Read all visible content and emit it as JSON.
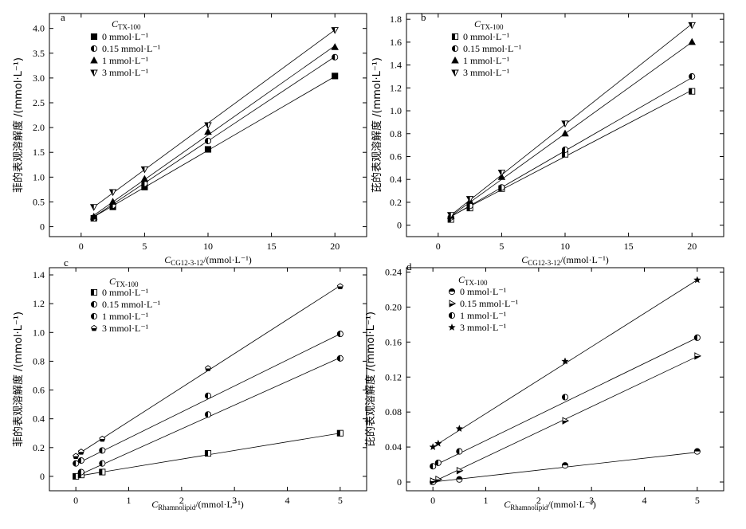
{
  "chart_data": [
    {
      "id": "a",
      "type": "scatter",
      "panel_label": "a",
      "legend_title": "C",
      "legend_title_sub": "TX-100",
      "ylabel": "菲的表观溶解度 /(mmol·L⁻¹)",
      "xlabel_main": "C",
      "xlabel_sub": "CG12-3-12",
      "xlabel_rest": "/(mmol·L⁻¹)",
      "xlim": [
        -2.5,
        22.5
      ],
      "ylim": [
        -0.2,
        4.3
      ],
      "xticks": [
        0,
        5,
        10,
        15,
        20
      ],
      "xtick_labels": [
        "0",
        "5",
        "10",
        "15",
        "20"
      ],
      "yticks": [
        0,
        0.5,
        1.0,
        1.5,
        2.0,
        2.5,
        3.0,
        3.5,
        4.0
      ],
      "ytick_labels": [
        "0",
        "0.5",
        "1.0",
        "1.5",
        "2.0",
        "2.5",
        "3.0",
        "3.5",
        "4.0"
      ],
      "series": [
        {
          "name": "0 mmol·L⁻¹",
          "marker": "square-filled",
          "x": [
            1,
            2.5,
            5,
            10,
            20
          ],
          "y": [
            0.17,
            0.4,
            0.8,
            1.56,
            3.04
          ],
          "fit": [
            0.05,
            0.149
          ]
        },
        {
          "name": "0.15 mmol·L⁻¹",
          "marker": "circle-half",
          "x": [
            1,
            2.5,
            5,
            10,
            20
          ],
          "y": [
            0.17,
            0.43,
            0.87,
            1.73,
            3.42
          ],
          "fit": [
            0.03,
            0.17
          ]
        },
        {
          "name": "1 mmol·L⁻¹",
          "marker": "triangle-up",
          "x": [
            1,
            2.5,
            5,
            10,
            20
          ],
          "y": [
            0.2,
            0.5,
            0.96,
            1.91,
            3.62
          ],
          "fit": [
            0.05,
            0.18
          ]
        },
        {
          "name": "3 mmol·L⁻¹",
          "marker": "triangle-down",
          "x": [
            1,
            2.5,
            5,
            10,
            20
          ],
          "y": [
            0.4,
            0.7,
            1.16,
            2.05,
            3.97
          ],
          "fit": [
            0.21,
            0.188
          ]
        }
      ]
    },
    {
      "id": "b",
      "type": "scatter",
      "panel_label": "b",
      "legend_title": "C",
      "legend_title_sub": "TX-100",
      "ylabel": "芘的表观溶解度 /(mmol·L⁻¹)",
      "xlabel_main": "C",
      "xlabel_sub": "CG12-3-12",
      "xlabel_rest": "/(mmol·L⁻¹)",
      "xlim": [
        -2.5,
        22.5
      ],
      "ylim": [
        -0.1,
        1.85
      ],
      "xticks": [
        0,
        5,
        10,
        15,
        20
      ],
      "xtick_labels": [
        "0",
        "5",
        "10",
        "15",
        "20"
      ],
      "yticks": [
        0,
        0.2,
        0.4,
        0.6,
        0.8,
        1.0,
        1.2,
        1.4,
        1.6,
        1.8
      ],
      "ytick_labels": [
        "0",
        "0.2",
        "0.4",
        "0.6",
        "0.8",
        "1.0",
        "1.2",
        "1.4",
        "1.6",
        "1.8"
      ],
      "series": [
        {
          "name": "0 mmol·L⁻¹",
          "marker": "square-half",
          "x": [
            1,
            2.5,
            5,
            10,
            20
          ],
          "y": [
            0.05,
            0.15,
            0.32,
            0.62,
            1.17
          ],
          "fit": [
            0.02,
            0.058
          ]
        },
        {
          "name": "0.15 mmol·L⁻¹",
          "marker": "circle-half",
          "x": [
            1,
            2.5,
            5,
            10,
            20
          ],
          "y": [
            0.07,
            0.17,
            0.33,
            0.66,
            1.3
          ],
          "fit": [
            0.01,
            0.064
          ]
        },
        {
          "name": "1 mmol·L⁻¹",
          "marker": "triangle-up",
          "x": [
            1,
            2.5,
            5,
            10,
            20
          ],
          "y": [
            0.08,
            0.21,
            0.42,
            0.8,
            1.6
          ],
          "fit": [
            0.0,
            0.08
          ]
        },
        {
          "name": "3 mmol·L⁻¹",
          "marker": "triangle-down",
          "x": [
            1,
            2.5,
            5,
            10,
            20
          ],
          "y": [
            0.09,
            0.23,
            0.46,
            0.89,
            1.75
          ],
          "fit": [
            0.0,
            0.088
          ]
        }
      ]
    },
    {
      "id": "c",
      "type": "scatter",
      "panel_label": "c",
      "legend_title": "C",
      "legend_title_sub": "TX-100",
      "ylabel": "菲的表观溶解度 /(mmol·L⁻¹)",
      "xlabel_main": "C",
      "xlabel_sub": "Rhamnolipid",
      "xlabel_rest": "/(mmol·L⁻¹)",
      "xlim": [
        -0.5,
        5.5
      ],
      "ylim": [
        -0.1,
        1.45
      ],
      "xticks": [
        0,
        1,
        2,
        3,
        4,
        5
      ],
      "xtick_labels": [
        "0",
        "1",
        "2",
        "3",
        "4",
        "5"
      ],
      "yticks": [
        0,
        0.2,
        0.4,
        0.6,
        0.8,
        1.0,
        1.2,
        1.4
      ],
      "ytick_labels": [
        "0",
        "0.2",
        "0.4",
        "0.6",
        "0.8",
        "1.0",
        "1.2",
        "1.4"
      ],
      "series": [
        {
          "name": "0 mmol·L⁻¹",
          "marker": "square-half",
          "x": [
            0,
            0.1,
            0.5,
            2.5,
            5
          ],
          "y": [
            0.0,
            0.01,
            0.03,
            0.16,
            0.3
          ],
          "fit": [
            0.0,
            0.06
          ]
        },
        {
          "name": "0.15 mmol·L⁻¹",
          "marker": "circle-half",
          "x": [
            0.1,
            0.5,
            2.5,
            5
          ],
          "y": [
            0.03,
            0.09,
            0.43,
            0.82
          ],
          "fit": [
            0.0,
            0.165
          ]
        },
        {
          "name": "1 mmol·L⁻¹",
          "marker": "circle-half",
          "x": [
            0,
            0.1,
            0.5,
            2.5,
            5
          ],
          "y": [
            0.09,
            0.11,
            0.18,
            0.56,
            0.99
          ],
          "fit": [
            0.085,
            0.181
          ]
        },
        {
          "name": "3 mmol·L⁻¹",
          "marker": "pentagon-half",
          "x": [
            0,
            0.1,
            0.5,
            2.5,
            5
          ],
          "y": [
            0.14,
            0.17,
            0.26,
            0.75,
            1.32
          ],
          "fit": [
            0.145,
            0.236
          ]
        }
      ]
    },
    {
      "id": "d",
      "type": "scatter",
      "panel_label": "d",
      "legend_title": "C",
      "legend_title_sub": "TX-100",
      "ylabel": "芘的表观溶解度 /(mmol·L⁻¹)",
      "xlabel_main": "C",
      "xlabel_sub": "Rhamnolipid",
      "xlabel_rest": "/(mmol·L⁻¹)",
      "xlim": [
        -0.5,
        5.5
      ],
      "ylim": [
        -0.01,
        0.245
      ],
      "xticks": [
        0,
        1,
        2,
        3,
        4,
        5
      ],
      "xtick_labels": [
        "0",
        "1",
        "2",
        "3",
        "4",
        "5"
      ],
      "yticks": [
        0,
        0.04,
        0.08,
        0.12,
        0.16,
        0.2,
        0.24
      ],
      "ytick_labels": [
        "0",
        "0.04",
        "0.08",
        "0.12",
        "0.16",
        "0.20",
        "0.24"
      ],
      "series": [
        {
          "name": "0 mmol·L⁻¹",
          "marker": "circle-tophalf",
          "x": [
            0,
            0.5,
            2.5,
            5
          ],
          "y": [
            0.0,
            0.003,
            0.019,
            0.035
          ],
          "fit": [
            0.0,
            0.0068
          ]
        },
        {
          "name": "0.15 mmol·L⁻¹",
          "marker": "triangle-right",
          "x": [
            0,
            0.1,
            0.5,
            2.5,
            5
          ],
          "y": [
            0.001,
            0.003,
            0.013,
            0.07,
            0.144
          ],
          "fit": [
            0.0,
            0.0287
          ]
        },
        {
          "name": "1 mmol·L⁻¹",
          "marker": "circle-half",
          "x": [
            0,
            0.1,
            0.5,
            2.5,
            5
          ],
          "y": [
            0.018,
            0.022,
            0.035,
            0.097,
            0.165
          ],
          "fit": [
            0.018,
            0.0294
          ]
        },
        {
          "name": "3 mmol·L⁻¹",
          "marker": "star",
          "x": [
            0,
            0.1,
            0.5,
            2.5,
            5
          ],
          "y": [
            0.04,
            0.044,
            0.061,
            0.138,
            0.231
          ],
          "fit": [
            0.04,
            0.0382
          ]
        }
      ]
    }
  ]
}
